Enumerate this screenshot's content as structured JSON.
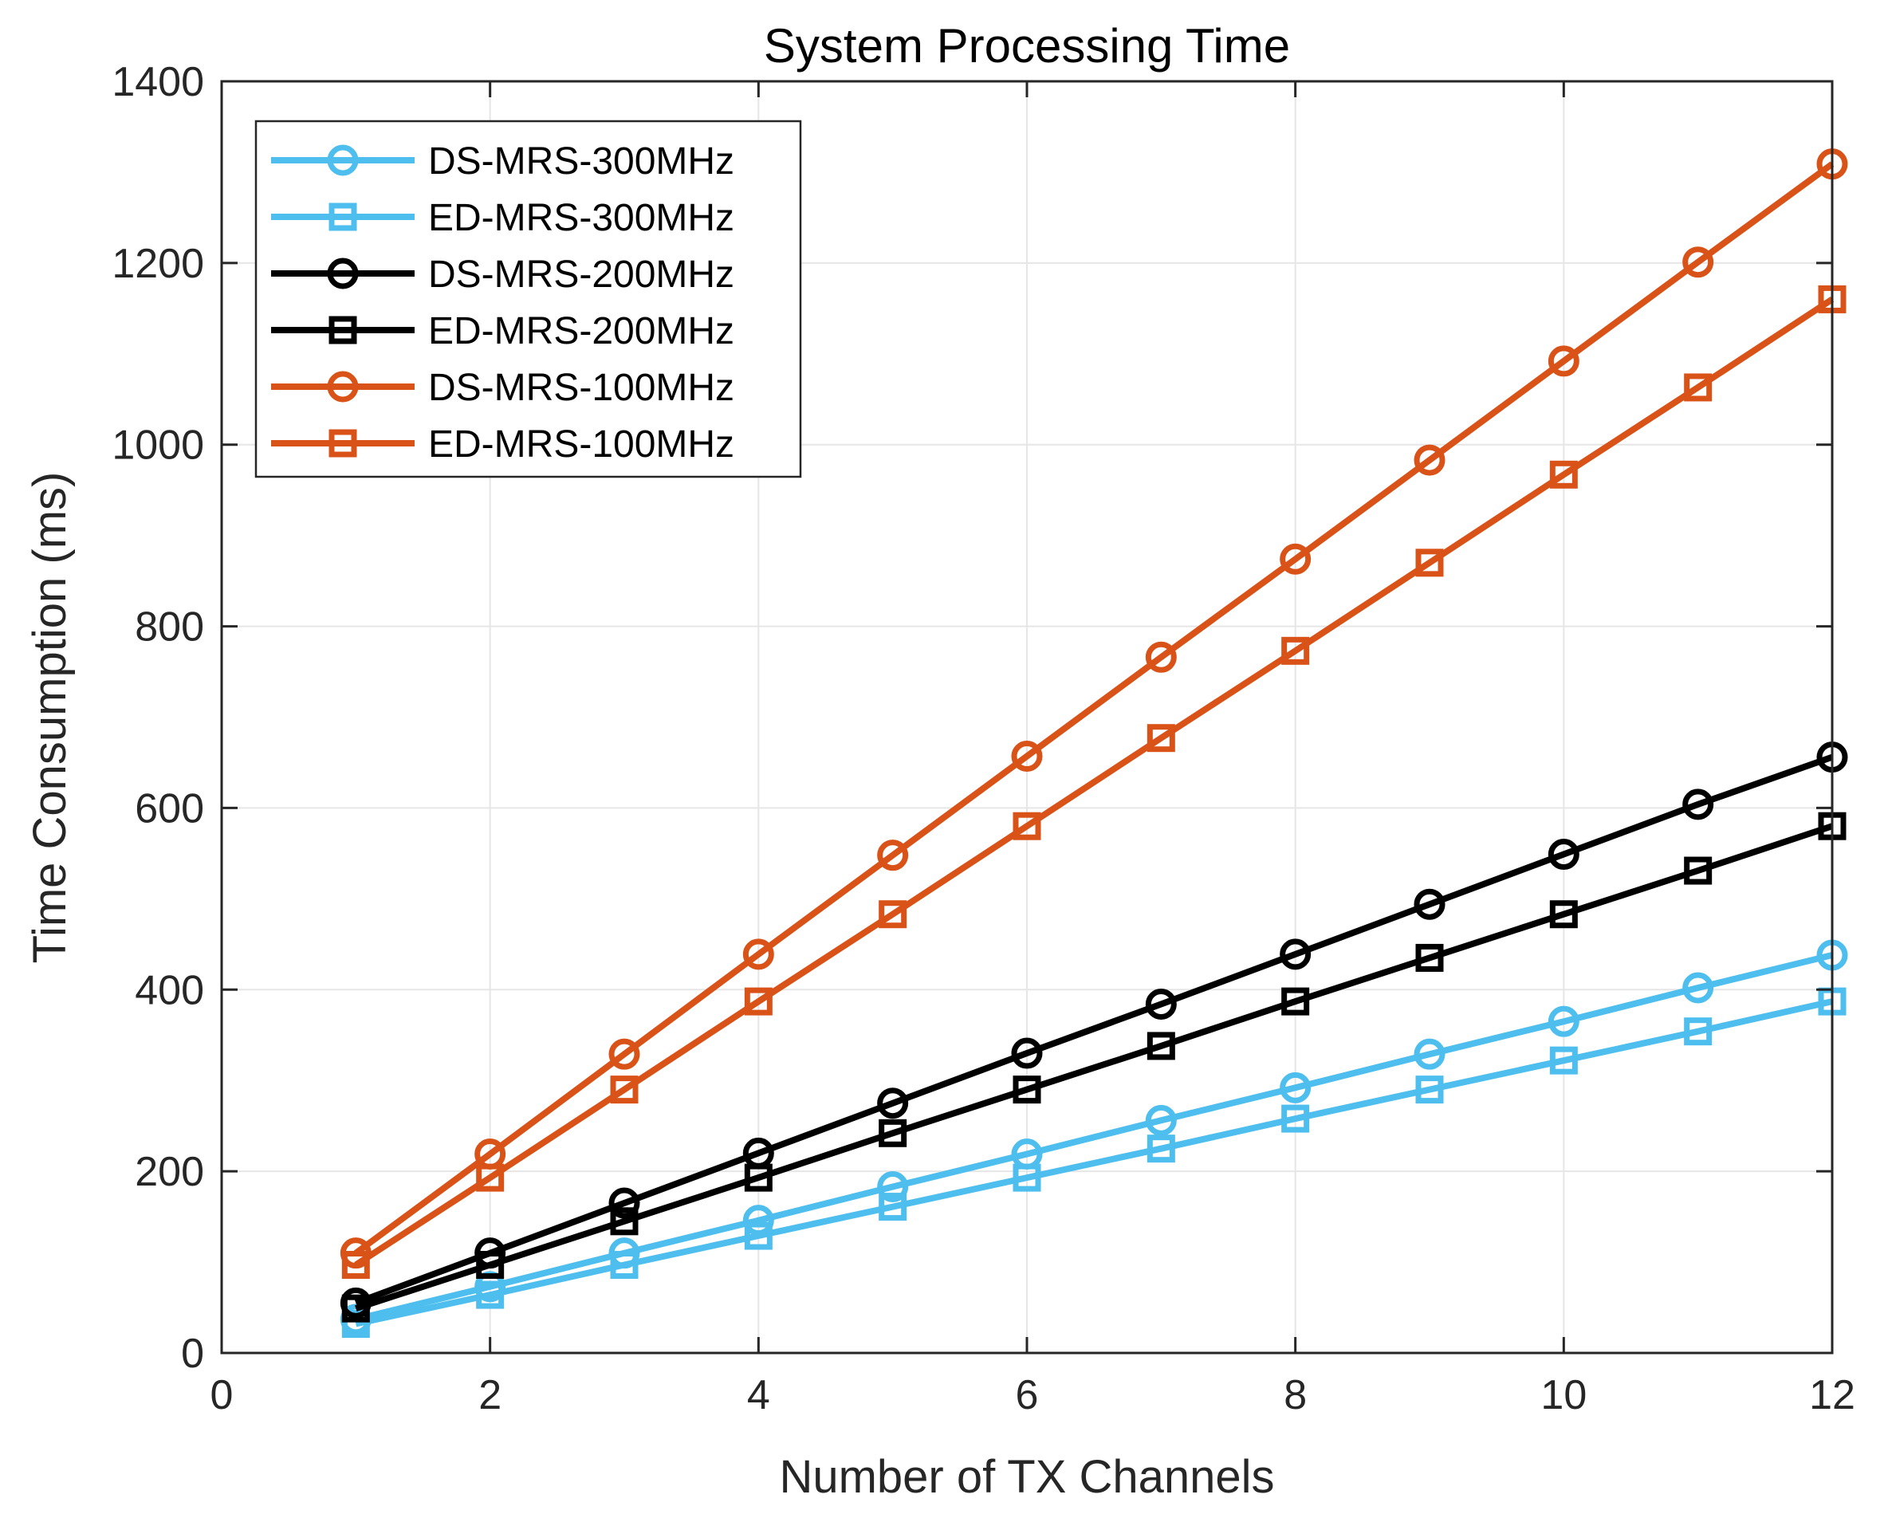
{
  "chart_data": {
    "type": "line",
    "title": "System Processing Time",
    "xlabel": "Number of TX Channels",
    "ylabel": "Time Consumption (ms)",
    "xlim": [
      0,
      12
    ],
    "ylim": [
      0,
      1400
    ],
    "xticks": [
      0,
      2,
      4,
      6,
      8,
      10,
      12
    ],
    "yticks": [
      0,
      200,
      400,
      600,
      800,
      1000,
      1200,
      1400
    ],
    "grid": true,
    "legend_position": "top-left",
    "x": [
      1,
      2,
      3,
      4,
      5,
      6,
      7,
      8,
      9,
      10,
      11,
      12
    ],
    "series": [
      {
        "name": "DS-MRS-300MHz",
        "color": "#4DBEEE",
        "marker": "circle",
        "values": [
          37,
          73,
          110,
          146,
          183,
          219,
          256,
          292,
          329,
          365,
          402,
          438
        ]
      },
      {
        "name": "ED-MRS-300MHz",
        "color": "#4DBEEE",
        "marker": "square",
        "values": [
          32,
          64,
          97,
          129,
          161,
          193,
          225,
          258,
          290,
          322,
          354,
          387
        ]
      },
      {
        "name": "DS-MRS-200MHz",
        "color": "#000000",
        "marker": "circle",
        "values": [
          55,
          110,
          165,
          220,
          275,
          330,
          384,
          439,
          494,
          549,
          604,
          656
        ]
      },
      {
        "name": "ED-MRS-200MHz",
        "color": "#000000",
        "marker": "square",
        "values": [
          49,
          97,
          145,
          193,
          242,
          290,
          338,
          387,
          435,
          483,
          531,
          580
        ]
      },
      {
        "name": "DS-MRS-100MHz",
        "color": "#D95319",
        "marker": "circle",
        "values": [
          110,
          219,
          329,
          439,
          548,
          657,
          766,
          874,
          983,
          1092,
          1201,
          1309
        ]
      },
      {
        "name": "ED-MRS-100MHz",
        "color": "#D95319",
        "marker": "square",
        "values": [
          97,
          193,
          290,
          387,
          483,
          580,
          677,
          773,
          870,
          967,
          1063,
          1160
        ]
      }
    ]
  }
}
